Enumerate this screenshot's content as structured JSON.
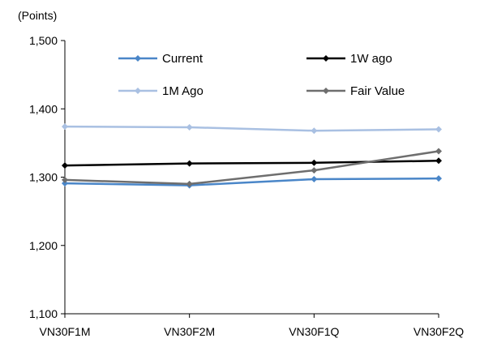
{
  "chart_data": {
    "type": "line",
    "unit_label": "(Points)",
    "categories": [
      "VN30F1M",
      "VN30F2M",
      "VN30F1Q",
      "VN30F2Q"
    ],
    "ylim": [
      1100,
      1500
    ],
    "yticks": [
      1100,
      1200,
      1300,
      1400,
      1500
    ],
    "ytick_labels": [
      "1,100",
      "1,200",
      "1,300",
      "1,400",
      "1,500"
    ],
    "grid": false,
    "legend_position": "top",
    "series": [
      {
        "name": "Current",
        "color": "#4a86c8",
        "values": [
          1291,
          1288,
          1297,
          1298
        ]
      },
      {
        "name": "1W ago",
        "color": "#000000",
        "values": [
          1317,
          1320,
          1321,
          1324
        ]
      },
      {
        "name": "1M Ago",
        "color": "#a9c0e2",
        "values": [
          1374,
          1373,
          1368,
          1370
        ]
      },
      {
        "name": "Fair Value",
        "color": "#6e6e6e",
        "values": [
          1296,
          1290,
          1310,
          1338
        ]
      }
    ]
  }
}
